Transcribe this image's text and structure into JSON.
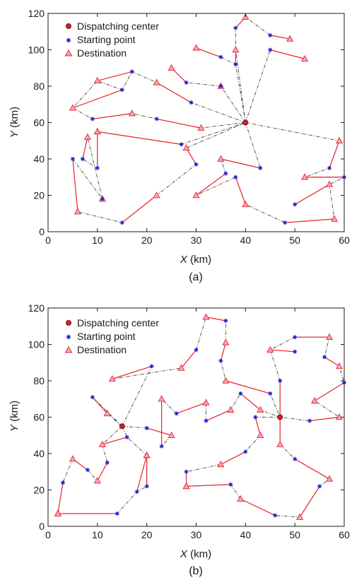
{
  "legend": {
    "center": "Dispatching center",
    "start": "Starting point",
    "dest": "Destination"
  },
  "colors": {
    "center_fill": "#c0262d",
    "start": "#1f1fd6",
    "dest_fill": "#f4a6b8",
    "dest_stroke": "#e8262e",
    "task_line": "#e8262e",
    "route_line": "#444444",
    "axis": "#1a1a1a"
  },
  "chart_data": [
    {
      "type": "scatter",
      "caption": "(a)",
      "x_var": "X",
      "x_unit": " (km)",
      "y_var": "Y",
      "y_unit": " (km)",
      "xlim": [
        0,
        60
      ],
      "ylim": [
        0,
        120
      ],
      "xticks": [
        0,
        10,
        20,
        30,
        40,
        50,
        60
      ],
      "yticks": [
        0,
        20,
        40,
        60,
        80,
        100,
        120
      ],
      "legend_position": "top-left",
      "centers": [
        [
          40,
          60
        ]
      ],
      "tasks": [
        {
          "start": [
            38,
            112
          ],
          "dest": [
            40,
            118
          ]
        },
        {
          "start": [
            45,
            108
          ],
          "dest": [
            49,
            106
          ]
        },
        {
          "start": [
            45,
            100
          ],
          "dest": [
            52,
            95
          ]
        },
        {
          "start": [
            38,
            92
          ],
          "dest": [
            38,
            100
          ]
        },
        {
          "start": [
            35,
            96
          ],
          "dest": [
            30,
            101
          ]
        },
        {
          "start": [
            28,
            82
          ],
          "dest": [
            25,
            90
          ]
        },
        {
          "start": [
            17,
            88
          ],
          "dest": [
            10,
            83
          ]
        },
        {
          "start": [
            15,
            78
          ],
          "dest": [
            5,
            68
          ]
        },
        {
          "start": [
            29,
            71
          ],
          "dest": [
            22,
            82
          ]
        },
        {
          "start": [
            9,
            62
          ],
          "dest": [
            17,
            65
          ]
        },
        {
          "start": [
            22,
            62
          ],
          "dest": [
            31,
            57
          ]
        },
        {
          "start": [
            27,
            48
          ],
          "dest": [
            10,
            55
          ]
        },
        {
          "start": [
            30,
            37
          ],
          "dest": [
            28,
            46
          ]
        },
        {
          "start": [
            10,
            35
          ],
          "dest": [
            10,
            55
          ]
        },
        {
          "start": [
            7,
            40
          ],
          "dest": [
            8,
            52
          ]
        },
        {
          "start": [
            5,
            40
          ],
          "dest": [
            6,
            11
          ]
        },
        {
          "start": [
            15,
            5
          ],
          "dest": [
            22,
            20
          ]
        },
        {
          "start": [
            36,
            32
          ],
          "dest": [
            30,
            20
          ]
        },
        {
          "start": [
            43,
            35
          ],
          "dest": [
            35,
            40
          ]
        },
        {
          "start": [
            38,
            30
          ],
          "dest": [
            40,
            15
          ]
        },
        {
          "start": [
            57,
            35
          ],
          "dest": [
            59,
            50
          ]
        },
        {
          "start": [
            60,
            30
          ],
          "dest": [
            52,
            30
          ]
        },
        {
          "start": [
            50,
            15
          ],
          "dest": [
            57,
            26
          ]
        },
        {
          "start": [
            48,
            5
          ],
          "dest": [
            58,
            7
          ]
        },
        {
          "start": [
            35,
            80
          ],
          "dest": [
            35,
            80
          ]
        },
        {
          "start": [
            11,
            18
          ],
          "dest": [
            11,
            18
          ]
        }
      ],
      "routes": [
        [
          [
            40,
            60
          ],
          [
            38,
            92
          ],
          [
            35,
            96
          ],
          [
            30,
            101
          ]
        ],
        [
          [
            40,
            60
          ],
          [
            38,
            100
          ],
          [
            38,
            112
          ],
          [
            40,
            118
          ],
          [
            45,
            108
          ],
          [
            49,
            106
          ]
        ],
        [
          [
            40,
            60
          ],
          [
            45,
            100
          ],
          [
            52,
            95
          ]
        ],
        [
          [
            40,
            60
          ],
          [
            35,
            80
          ],
          [
            28,
            82
          ],
          [
            25,
            90
          ]
        ],
        [
          [
            40,
            60
          ],
          [
            29,
            71
          ],
          [
            22,
            82
          ],
          [
            17,
            88
          ],
          [
            15,
            78
          ],
          [
            10,
            83
          ],
          [
            5,
            68
          ],
          [
            9,
            62
          ],
          [
            17,
            65
          ],
          [
            22,
            62
          ],
          [
            31,
            57
          ],
          [
            40,
            60
          ]
        ],
        [
          [
            40,
            60
          ],
          [
            27,
            48
          ],
          [
            10,
            55
          ],
          [
            10,
            35
          ],
          [
            7,
            40
          ],
          [
            8,
            52
          ],
          [
            11,
            18
          ],
          [
            5,
            40
          ],
          [
            6,
            11
          ],
          [
            15,
            5
          ],
          [
            22,
            20
          ],
          [
            30,
            37
          ],
          [
            28,
            46
          ],
          [
            40,
            60
          ]
        ],
        [
          [
            40,
            60
          ],
          [
            43,
            35
          ],
          [
            35,
            40
          ],
          [
            36,
            32
          ],
          [
            30,
            20
          ],
          [
            38,
            30
          ],
          [
            40,
            15
          ],
          [
            48,
            5
          ],
          [
            58,
            7
          ],
          [
            57,
            26
          ],
          [
            50,
            15
          ]
        ],
        [
          [
            40,
            60
          ],
          [
            59,
            50
          ],
          [
            57,
            35
          ],
          [
            52,
            30
          ],
          [
            60,
            30
          ],
          [
            57,
            26
          ]
        ]
      ]
    },
    {
      "type": "scatter",
      "caption": "(b)",
      "x_var": "X",
      "x_unit": " (km)",
      "y_var": "Y",
      "y_unit": " (km)",
      "xlim": [
        0,
        60
      ],
      "ylim": [
        0,
        120
      ],
      "xticks": [
        0,
        10,
        20,
        30,
        40,
        50,
        60
      ],
      "yticks": [
        0,
        20,
        40,
        60,
        80,
        100,
        120
      ],
      "legend_position": "top-left",
      "centers": [
        [
          15,
          55
        ],
        [
          47,
          60
        ]
      ],
      "tasks": [
        {
          "start": [
            36,
            113
          ],
          "dest": [
            32,
            115
          ]
        },
        {
          "start": [
            35,
            91
          ],
          "dest": [
            36,
            101
          ]
        },
        {
          "start": [
            30,
            97
          ],
          "dest": [
            27,
            87
          ]
        },
        {
          "start": [
            21,
            88
          ],
          "dest": [
            13,
            81
          ]
        },
        {
          "start": [
            9,
            71
          ],
          "dest": [
            12,
            62
          ]
        },
        {
          "start": [
            16,
            49
          ],
          "dest": [
            11,
            45
          ]
        },
        {
          "start": [
            20,
            54
          ],
          "dest": [
            25,
            50
          ]
        },
        {
          "start": [
            23,
            44
          ],
          "dest": [
            23,
            70
          ]
        },
        {
          "start": [
            26,
            62
          ],
          "dest": [
            32,
            68
          ]
        },
        {
          "start": [
            32,
            58
          ],
          "dest": [
            37,
            64
          ]
        },
        {
          "start": [
            39,
            73
          ],
          "dest": [
            43,
            64
          ]
        },
        {
          "start": [
            45,
            73
          ],
          "dest": [
            36,
            80
          ]
        },
        {
          "start": [
            42,
            60
          ],
          "dest": [
            43,
            50
          ]
        },
        {
          "start": [
            40,
            41
          ],
          "dest": [
            35,
            34
          ]
        },
        {
          "start": [
            28,
            30
          ],
          "dest": [
            28,
            22
          ]
        },
        {
          "start": [
            37,
            23
          ],
          "dest": [
            28,
            22
          ]
        },
        {
          "start": [
            46,
            6
          ],
          "dest": [
            39,
            15
          ]
        },
        {
          "start": [
            55,
            22
          ],
          "dest": [
            51,
            5
          ]
        },
        {
          "start": [
            50,
            37
          ],
          "dest": [
            57,
            26
          ]
        },
        {
          "start": [
            50,
            104
          ],
          "dest": [
            57,
            104
          ]
        },
        {
          "start": [
            50,
            96
          ],
          "dest": [
            45,
            97
          ]
        },
        {
          "start": [
            47,
            80
          ],
          "dest": [
            47,
            45
          ]
        },
        {
          "start": [
            56,
            93
          ],
          "dest": [
            59,
            88
          ]
        },
        {
          "start": [
            60,
            79
          ],
          "dest": [
            54,
            69
          ]
        },
        {
          "start": [
            53,
            58
          ],
          "dest": [
            59,
            60
          ]
        },
        {
          "start": [
            20,
            22
          ],
          "dest": [
            20,
            39
          ]
        },
        {
          "start": [
            18,
            19
          ],
          "dest": [
            20,
            39
          ]
        },
        {
          "start": [
            12,
            35
          ],
          "dest": [
            10,
            25
          ]
        },
        {
          "start": [
            8,
            31
          ],
          "dest": [
            5,
            37
          ]
        },
        {
          "start": [
            3,
            24
          ],
          "dest": [
            2,
            7
          ]
        },
        {
          "start": [
            14,
            7
          ],
          "dest": [
            2,
            7
          ]
        }
      ],
      "routes": [
        [
          [
            15,
            55
          ],
          [
            9,
            71
          ],
          [
            12,
            62
          ],
          [
            15,
            55
          ]
        ],
        [
          [
            15,
            55
          ],
          [
            21,
            88
          ],
          [
            13,
            81
          ],
          [
            27,
            87
          ],
          [
            30,
            97
          ],
          [
            32,
            115
          ],
          [
            36,
            113
          ],
          [
            36,
            101
          ],
          [
            35,
            91
          ],
          [
            36,
            80
          ],
          [
            45,
            73
          ],
          [
            47,
            60
          ]
        ],
        [
          [
            15,
            55
          ],
          [
            20,
            54
          ],
          [
            25,
            50
          ],
          [
            23,
            44
          ],
          [
            23,
            70
          ],
          [
            26,
            62
          ],
          [
            32,
            68
          ],
          [
            32,
            58
          ],
          [
            37,
            64
          ],
          [
            39,
            73
          ],
          [
            43,
            64
          ],
          [
            47,
            60
          ]
        ],
        [
          [
            15,
            55
          ],
          [
            16,
            49
          ],
          [
            20,
            39
          ],
          [
            20,
            22
          ],
          [
            18,
            19
          ],
          [
            14,
            7
          ],
          [
            2,
            7
          ],
          [
            3,
            24
          ],
          [
            5,
            37
          ],
          [
            8,
            31
          ],
          [
            10,
            25
          ],
          [
            12,
            35
          ],
          [
            11,
            45
          ],
          [
            15,
            55
          ]
        ],
        [
          [
            47,
            60
          ],
          [
            42,
            60
          ],
          [
            43,
            50
          ],
          [
            40,
            41
          ],
          [
            35,
            34
          ],
          [
            28,
            30
          ],
          [
            28,
            22
          ],
          [
            37,
            23
          ],
          [
            39,
            15
          ],
          [
            46,
            6
          ],
          [
            51,
            5
          ],
          [
            55,
            22
          ],
          [
            57,
            26
          ],
          [
            50,
            37
          ],
          [
            47,
            45
          ],
          [
            47,
            60
          ]
        ],
        [
          [
            47,
            60
          ],
          [
            47,
            80
          ],
          [
            45,
            97
          ],
          [
            50,
            104
          ],
          [
            57,
            104
          ],
          [
            56,
            93
          ],
          [
            59,
            88
          ],
          [
            60,
            79
          ],
          [
            54,
            69
          ],
          [
            59,
            60
          ],
          [
            53,
            58
          ],
          [
            47,
            60
          ]
        ]
      ]
    }
  ]
}
